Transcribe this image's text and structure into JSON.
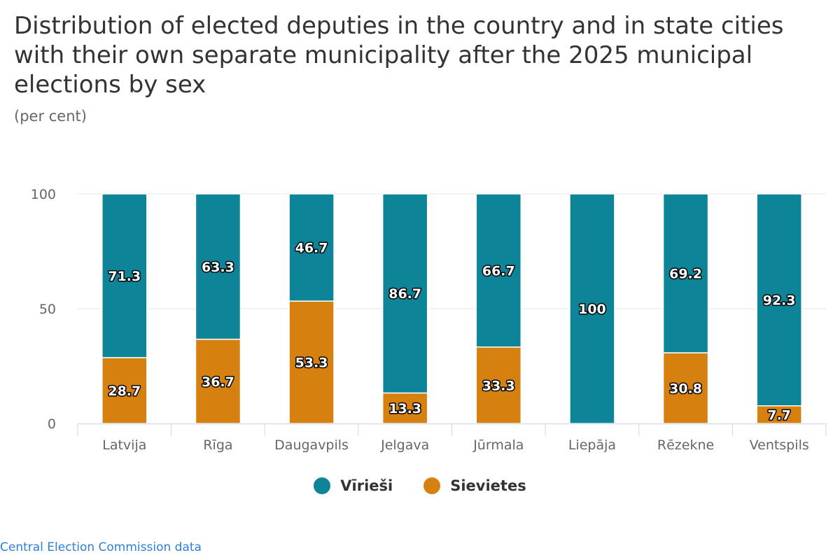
{
  "title": "Distribution of elected deputies in the country and in state cities with their own separate municipality after the 2025 municipal elections by sex",
  "subtitle": "(per cent)",
  "credit": "Central Election Commission data",
  "colors": {
    "men": "#0e8499",
    "women": "#d5800f",
    "grid": "#e6e6e6",
    "axis": "#ccd6eb"
  },
  "chart_data": {
    "type": "bar",
    "stacked": true,
    "categories": [
      "Latvija",
      "Rīga",
      "Daugavpils",
      "Jelgava",
      "Jūrmala",
      "Liepāja",
      "Rēzekne",
      "Ventspils"
    ],
    "series": [
      {
        "name": "Vīrieši",
        "color": "#0e8499",
        "values": [
          71.3,
          63.3,
          46.7,
          86.7,
          66.7,
          100,
          69.2,
          92.3
        ]
      },
      {
        "name": "Sievietes",
        "color": "#d5800f",
        "values": [
          28.7,
          36.7,
          53.3,
          13.3,
          33.3,
          0,
          30.8,
          7.7
        ]
      }
    ],
    "ylim": [
      0,
      100
    ],
    "yticks": [
      0,
      50,
      100
    ],
    "grid": true,
    "legend": "bottom-center",
    "title": "Distribution of elected deputies in the country and in state cities with their own separate municipality after the 2025 municipal elections by sex",
    "subtitle": "(per cent)"
  }
}
